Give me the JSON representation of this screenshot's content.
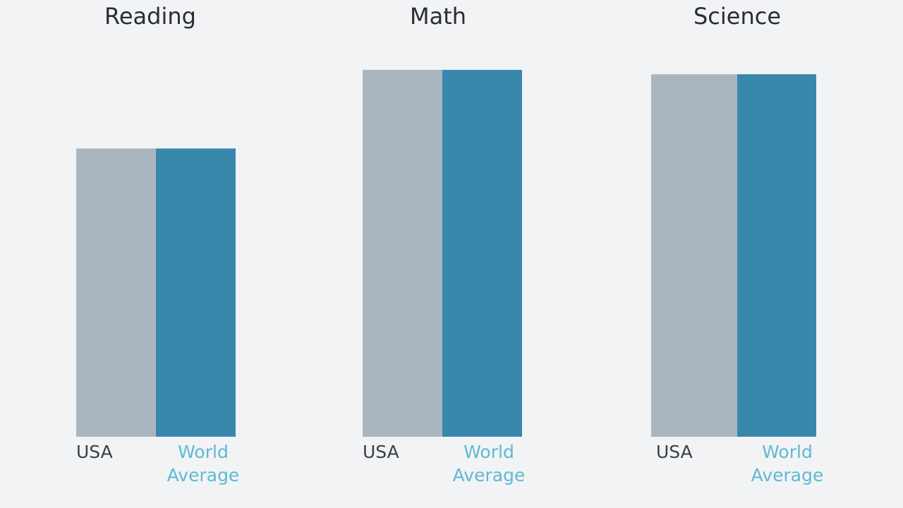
{
  "chart_data": [
    {
      "type": "bar",
      "title": "Reading",
      "categories": [
        "USA",
        "World Average"
      ],
      "values": [
        66,
        66
      ],
      "ylim": [
        0,
        100
      ]
    },
    {
      "type": "bar",
      "title": "Math",
      "categories": [
        "USA",
        "World Average"
      ],
      "values": [
        84,
        84
      ],
      "ylim": [
        0,
        100
      ]
    },
    {
      "type": "bar",
      "title": "Science",
      "categories": [
        "USA",
        "World Average"
      ],
      "values": [
        83,
        83
      ],
      "ylim": [
        0,
        100
      ]
    }
  ],
  "colors": {
    "usa_bar": "#a9b6bf",
    "world_bar": "#3a87ad",
    "usa_label": "#3b3f44",
    "world_label": "#5fb9d3"
  },
  "gridlines": false,
  "legend": "none"
}
